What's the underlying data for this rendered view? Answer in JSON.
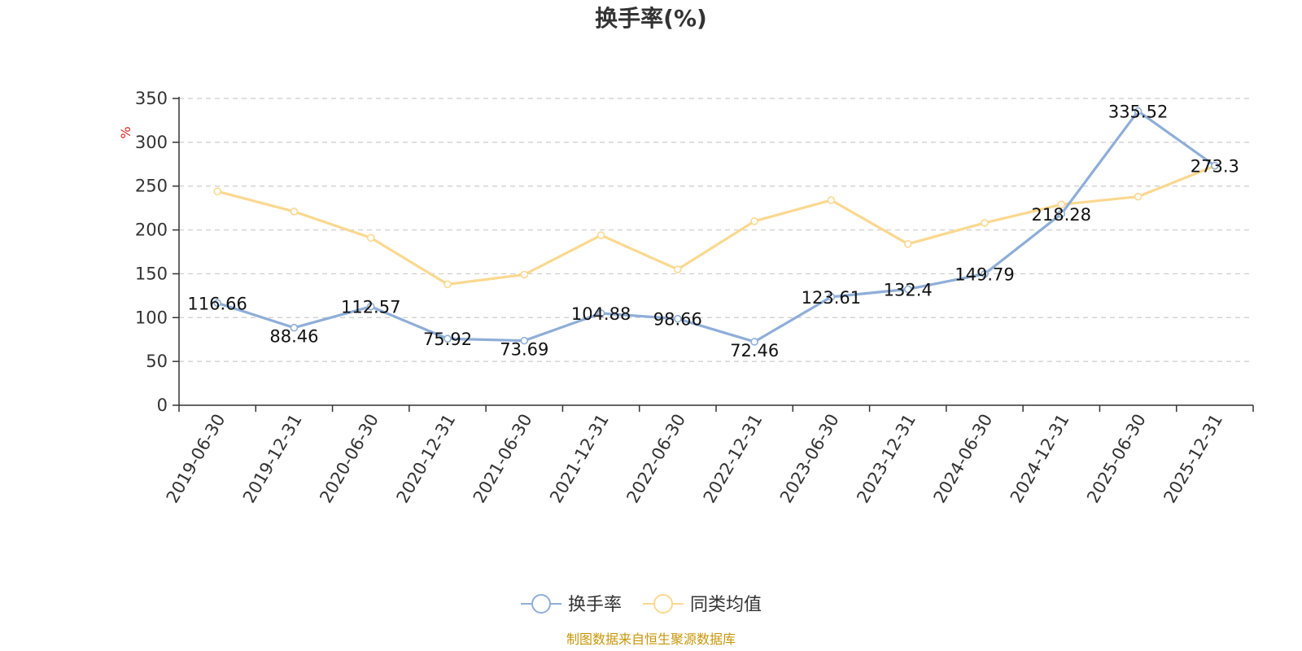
{
  "chart_data": {
    "type": "line",
    "title": "换手率(%)",
    "ylabel": "%",
    "ylim": [
      0,
      350
    ],
    "yticks": [
      0,
      50,
      100,
      150,
      200,
      250,
      300,
      350
    ],
    "grid": true,
    "legend_position": "bottom",
    "categories": [
      "2019-06-30",
      "2019-12-31",
      "2020-06-30",
      "2020-12-31",
      "2021-06-30",
      "2021-12-31",
      "2022-06-30",
      "2022-12-31",
      "2023-06-30",
      "2023-12-31",
      "2024-06-30",
      "2024-12-31",
      "2025-06-30",
      "2025-12-31"
    ],
    "series": [
      {
        "name": "换手率",
        "color": "#8eaed8",
        "show_labels": true,
        "values": [
          116.66,
          88.46,
          112.57,
          75.92,
          73.69,
          104.88,
          98.66,
          72.46,
          123.61,
          132.4,
          149.79,
          218.28,
          335.52,
          273.3
        ]
      },
      {
        "name": "同类均值",
        "color": "#fbd88f",
        "show_labels": false,
        "values": [
          244,
          221,
          191,
          138,
          149,
          194,
          155,
          210,
          234,
          184,
          208,
          229,
          238,
          273
        ]
      }
    ],
    "source": "制图数据来自恒生聚源数据库"
  }
}
